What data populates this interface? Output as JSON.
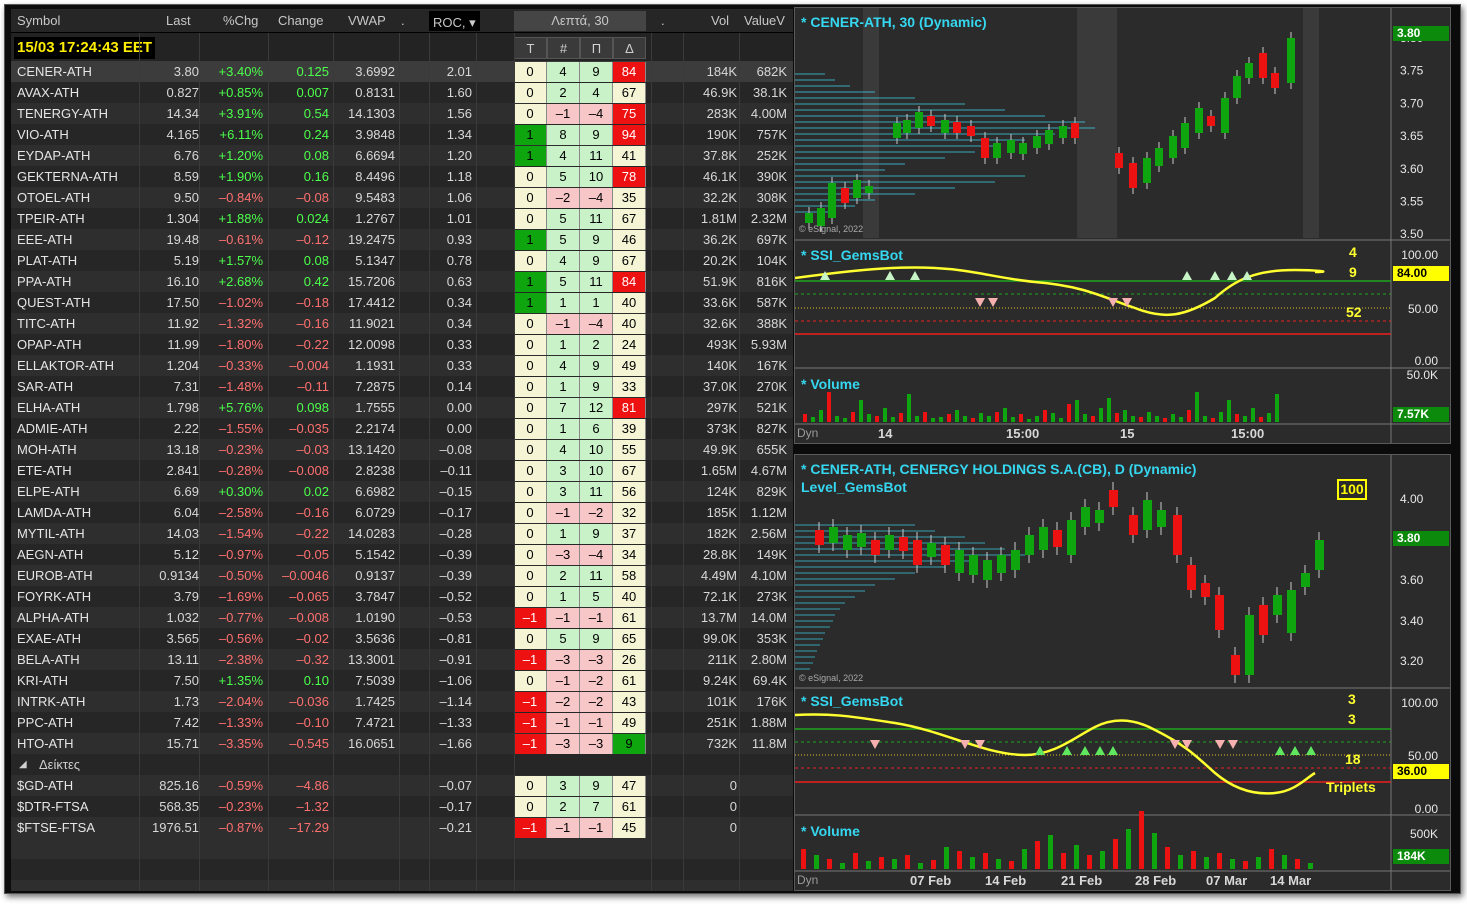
{
  "watchlist": {
    "columns": {
      "symbol": "Symbol",
      "last": "Last",
      "pchg": "%Chg",
      "change": "Change",
      "vwap": "VWAP",
      "dot1": ".",
      "roc": "ROC,",
      "interval": "Λεπτά, 30",
      "dot2": ".",
      "vol": "Vol",
      "valuev": "ValueV"
    },
    "subcolumns": [
      "Τ",
      "#",
      "Π",
      "Δ"
    ],
    "clock": "15/03 17:24:43 EET",
    "group_label": "Δείκτες",
    "rows": [
      {
        "sym": "CENER-ATH",
        "last": "3.80",
        "pchg": "+3.40%",
        "chg": "0.125",
        "vwap": "3.6992",
        "roc": "2.01",
        "t": "0",
        "n": "4",
        "p": "9",
        "d": "84",
        "vol": "184K",
        "valv": "682K"
      },
      {
        "sym": "AVAX-ATH",
        "last": "0.827",
        "pchg": "+0.85%",
        "chg": "0.007",
        "vwap": "0.8131",
        "roc": "1.60",
        "t": "0",
        "n": "2",
        "p": "4",
        "d": "67",
        "vol": "46.9K",
        "valv": "38.1K"
      },
      {
        "sym": "TENERGY-ATH",
        "last": "14.34",
        "pchg": "+3.91%",
        "chg": "0.54",
        "vwap": "14.1303",
        "roc": "1.56",
        "t": "0",
        "n": "–1",
        "p": "–4",
        "d": "75",
        "vol": "283K",
        "valv": "4.00M"
      },
      {
        "sym": "VIO-ATH",
        "last": "4.165",
        "pchg": "+6.11%",
        "chg": "0.24",
        "vwap": "3.9848",
        "roc": "1.34",
        "t": "1",
        "n": "8",
        "p": "9",
        "d": "94",
        "vol": "190K",
        "valv": "757K"
      },
      {
        "sym": "EYDAP-ATH",
        "last": "6.76",
        "pchg": "+1.20%",
        "chg": "0.08",
        "vwap": "6.6694",
        "roc": "1.20",
        "t": "1",
        "n": "4",
        "p": "11",
        "d": "41",
        "vol": "37.8K",
        "valv": "252K"
      },
      {
        "sym": "GEKTERNA-ATH",
        "last": "8.59",
        "pchg": "+1.90%",
        "chg": "0.16",
        "vwap": "8.4496",
        "roc": "1.18",
        "t": "0",
        "n": "5",
        "p": "10",
        "d": "78",
        "vol": "46.1K",
        "valv": "390K"
      },
      {
        "sym": "OTOEL-ATH",
        "last": "9.50",
        "pchg": "–0.84%",
        "chg": "–0.08",
        "vwap": "9.5483",
        "roc": "1.06",
        "t": "0",
        "n": "–2",
        "p": "–4",
        "d": "35",
        "vol": "32.2K",
        "valv": "308K"
      },
      {
        "sym": "TPEIR-ATH",
        "last": "1.304",
        "pchg": "+1.88%",
        "chg": "0.024",
        "vwap": "1.2767",
        "roc": "1.01",
        "t": "0",
        "n": "5",
        "p": "11",
        "d": "67",
        "vol": "1.81M",
        "valv": "2.32M"
      },
      {
        "sym": "EEE-ATH",
        "last": "19.48",
        "pchg": "–0.61%",
        "chg": "–0.12",
        "vwap": "19.2475",
        "roc": "0.93",
        "t": "1",
        "n": "5",
        "p": "9",
        "d": "46",
        "vol": "36.2K",
        "valv": "697K"
      },
      {
        "sym": "PLAT-ATH",
        "last": "5.19",
        "pchg": "+1.57%",
        "chg": "0.08",
        "vwap": "5.1347",
        "roc": "0.78",
        "t": "0",
        "n": "4",
        "p": "9",
        "d": "67",
        "vol": "20.2K",
        "valv": "104K"
      },
      {
        "sym": "PPA-ATH",
        "last": "16.10",
        "pchg": "+2.68%",
        "chg": "0.42",
        "vwap": "15.7206",
        "roc": "0.63",
        "t": "1",
        "n": "5",
        "p": "11",
        "d": "84",
        "vol": "51.9K",
        "valv": "816K"
      },
      {
        "sym": "QUEST-ATH",
        "last": "17.50",
        "pchg": "–1.02%",
        "chg": "–0.18",
        "vwap": "17.4412",
        "roc": "0.34",
        "t": "1",
        "n": "1",
        "p": "1",
        "d": "40",
        "vol": "33.6K",
        "valv": "587K"
      },
      {
        "sym": "TITC-ATH",
        "last": "11.92",
        "pchg": "–1.32%",
        "chg": "–0.16",
        "vwap": "11.9021",
        "roc": "0.34",
        "t": "0",
        "n": "–1",
        "p": "–4",
        "d": "40",
        "vol": "32.6K",
        "valv": "388K"
      },
      {
        "sym": "OPAP-ATH",
        "last": "11.99",
        "pchg": "–1.80%",
        "chg": "–0.22",
        "vwap": "12.0098",
        "roc": "0.33",
        "t": "0",
        "n": "1",
        "p": "2",
        "d": "24",
        "vol": "493K",
        "valv": "5.93M"
      },
      {
        "sym": "ELLAKTOR-ATH",
        "last": "1.204",
        "pchg": "–0.33%",
        "chg": "–0.004",
        "vwap": "1.1931",
        "roc": "0.33",
        "t": "0",
        "n": "4",
        "p": "9",
        "d": "49",
        "vol": "140K",
        "valv": "167K"
      },
      {
        "sym": "SAR-ATH",
        "last": "7.31",
        "pchg": "–1.48%",
        "chg": "–0.11",
        "vwap": "7.2875",
        "roc": "0.14",
        "t": "0",
        "n": "1",
        "p": "9",
        "d": "33",
        "vol": "37.0K",
        "valv": "270K"
      },
      {
        "sym": "ELHA-ATH",
        "last": "1.798",
        "pchg": "+5.76%",
        "chg": "0.098",
        "vwap": "1.7555",
        "roc": "0.00",
        "t": "0",
        "n": "7",
        "p": "12",
        "d": "81",
        "vol": "297K",
        "valv": "521K"
      },
      {
        "sym": "ADMIE-ATH",
        "last": "2.22",
        "pchg": "–1.55%",
        "chg": "–0.035",
        "vwap": "2.2174",
        "roc": "0.00",
        "t": "0",
        "n": "1",
        "p": "6",
        "d": "39",
        "vol": "373K",
        "valv": "827K"
      },
      {
        "sym": "MOH-ATH",
        "last": "13.18",
        "pchg": "–0.23%",
        "chg": "–0.03",
        "vwap": "13.1420",
        "roc": "–0.08",
        "t": "0",
        "n": "4",
        "p": "10",
        "d": "55",
        "vol": "49.9K",
        "valv": "655K"
      },
      {
        "sym": "ETE-ATH",
        "last": "2.841",
        "pchg": "–0.28%",
        "chg": "–0.008",
        "vwap": "2.8238",
        "roc": "–0.11",
        "t": "0",
        "n": "3",
        "p": "10",
        "d": "67",
        "vol": "1.65M",
        "valv": "4.67M"
      },
      {
        "sym": "ELPE-ATH",
        "last": "6.69",
        "pchg": "+0.30%",
        "chg": "0.02",
        "vwap": "6.6982",
        "roc": "–0.15",
        "t": "0",
        "n": "3",
        "p": "11",
        "d": "56",
        "vol": "124K",
        "valv": "829K"
      },
      {
        "sym": "LAMDA-ATH",
        "last": "6.04",
        "pchg": "–2.58%",
        "chg": "–0.16",
        "vwap": "6.0729",
        "roc": "–0.17",
        "t": "0",
        "n": "–1",
        "p": "–2",
        "d": "32",
        "vol": "185K",
        "valv": "1.12M"
      },
      {
        "sym": "MYTIL-ATH",
        "last": "14.03",
        "pchg": "–1.54%",
        "chg": "–0.22",
        "vwap": "14.0283",
        "roc": "–0.28",
        "t": "0",
        "n": "1",
        "p": "9",
        "d": "37",
        "vol": "182K",
        "valv": "2.56M"
      },
      {
        "sym": "AEGN-ATH",
        "last": "5.12",
        "pchg": "–0.97%",
        "chg": "–0.05",
        "vwap": "5.1542",
        "roc": "–0.39",
        "t": "0",
        "n": "–3",
        "p": "–4",
        "d": "34",
        "vol": "28.8K",
        "valv": "149K"
      },
      {
        "sym": "EUROB-ATH",
        "last": "0.9134",
        "pchg": "–0.50%",
        "chg": "–0.0046",
        "vwap": "0.9137",
        "roc": "–0.39",
        "t": "0",
        "n": "2",
        "p": "11",
        "d": "58",
        "vol": "4.49M",
        "valv": "4.10M"
      },
      {
        "sym": "FOYRK-ATH",
        "last": "3.79",
        "pchg": "–1.69%",
        "chg": "–0.065",
        "vwap": "3.7847",
        "roc": "–0.52",
        "t": "0",
        "n": "1",
        "p": "5",
        "d": "40",
        "vol": "72.1K",
        "valv": "273K"
      },
      {
        "sym": "ALPHA-ATH",
        "last": "1.032",
        "pchg": "–0.77%",
        "chg": "–0.008",
        "vwap": "1.0190",
        "roc": "–0.53",
        "t": "–1",
        "n": "–1",
        "p": "–1",
        "d": "61",
        "vol": "13.7M",
        "valv": "14.0M"
      },
      {
        "sym": "EXAE-ATH",
        "last": "3.565",
        "pchg": "–0.56%",
        "chg": "–0.02",
        "vwap": "3.5636",
        "roc": "–0.81",
        "t": "0",
        "n": "5",
        "p": "9",
        "d": "65",
        "vol": "99.0K",
        "valv": "353K"
      },
      {
        "sym": "BELA-ATH",
        "last": "13.11",
        "pchg": "–2.38%",
        "chg": "–0.32",
        "vwap": "13.3001",
        "roc": "–0.91",
        "t": "–1",
        "n": "–3",
        "p": "–3",
        "d": "26",
        "vol": "211K",
        "valv": "2.80M"
      },
      {
        "sym": "KRI-ATH",
        "last": "7.50",
        "pchg": "+1.35%",
        "chg": "0.10",
        "vwap": "7.5039",
        "roc": "–1.06",
        "t": "0",
        "n": "–1",
        "p": "–2",
        "d": "61",
        "vol": "9.24K",
        "valv": "69.4K"
      },
      {
        "sym": "INTRK-ATH",
        "last": "1.73",
        "pchg": "–2.04%",
        "chg": "–0.036",
        "vwap": "1.7425",
        "roc": "–1.14",
        "t": "–1",
        "n": "–2",
        "p": "–2",
        "d": "43",
        "vol": "101K",
        "valv": "176K"
      },
      {
        "sym": "PPC-ATH",
        "last": "7.42",
        "pchg": "–1.33%",
        "chg": "–0.10",
        "vwap": "7.4721",
        "roc": "–1.33",
        "t": "–1",
        "n": "–1",
        "p": "–1",
        "d": "49",
        "vol": "251K",
        "valv": "1.88M"
      },
      {
        "sym": "HTO-ATH",
        "last": "15.71",
        "pchg": "–3.35%",
        "chg": "–0.545",
        "vwap": "16.0651",
        "roc": "–1.66",
        "t": "–1",
        "n": "–3",
        "p": "–3",
        "d": "9",
        "vol": "732K",
        "valv": "11.8M"
      }
    ],
    "index_rows": [
      {
        "sym": "$GD-ATH",
        "last": "825.16",
        "pchg": "–0.59%",
        "chg": "–4.86",
        "vwap": "",
        "roc": "–0.07",
        "t": "0",
        "n": "3",
        "p": "9",
        "d": "47",
        "vol": "0",
        "valv": ""
      },
      {
        "sym": "$DTR-FTSA",
        "last": "568.35",
        "pchg": "–0.23%",
        "chg": "–1.32",
        "vwap": "",
        "roc": "–0.17",
        "t": "0",
        "n": "2",
        "p": "7",
        "d": "61",
        "vol": "0",
        "valv": ""
      },
      {
        "sym": "$FTSE-FTSA",
        "last": "1976.51",
        "pchg": "–0.87%",
        "chg": "–17.29",
        "vwap": "",
        "roc": "–0.21",
        "t": "–1",
        "n": "–1",
        "p": "–1",
        "d": "45",
        "vol": "0",
        "valv": ""
      }
    ]
  },
  "chart_intraday": {
    "title": "* CENER-ATH, 30 (Dynamic)",
    "y_ticks": [
      "3.80",
      "3.75",
      "3.70",
      "3.65",
      "3.60",
      "3.55",
      "3.50"
    ],
    "last_price": "3.80",
    "copyright": "© eSignal, 2022",
    "ssi_title": "* SSI_GemsBot",
    "ssi_ticks": [
      "100.00",
      "50.00",
      "0.00"
    ],
    "ssi_value": "84.00",
    "ssi_numbers": [
      "4",
      "9",
      "52"
    ],
    "vol_title": "* Volume",
    "vol_tick": "50.0K",
    "vol_value": "7.57K",
    "x_labels": [
      "14",
      "15:00",
      "15",
      "15:00"
    ],
    "dyn": "Dyn"
  },
  "chart_daily": {
    "title": "* CENER-ATH, CENERGY HOLDINGS S.A.(CB), D (Dynamic)",
    "subtitle": "Level_GemsBot",
    "level_badge": "100",
    "y_ticks": [
      "4.00",
      "3.80",
      "3.60",
      "3.40",
      "3.20"
    ],
    "last_price": "3.80",
    "copyright": "© eSignal, 2022",
    "ssi_title": "* SSI_GemsBot",
    "ssi_ticks": [
      "100.00",
      "50.00",
      "0.00"
    ],
    "ssi_value": "36.00",
    "ssi_numbers": [
      "3",
      "3",
      "18"
    ],
    "ssi_label": "Triplets",
    "vol_title": "* Volume",
    "vol_tick": "500K",
    "vol_value": "184K",
    "x_labels": [
      "07 Feb",
      "14 Feb",
      "21 Feb",
      "28 Feb",
      "07 Mar",
      "14 Mar"
    ],
    "dyn": "Dyn"
  },
  "colors": {
    "up": "#0fa50f",
    "down": "#ee1111",
    "accent": "#35d7f0",
    "ssi_line": "#ffff30"
  }
}
